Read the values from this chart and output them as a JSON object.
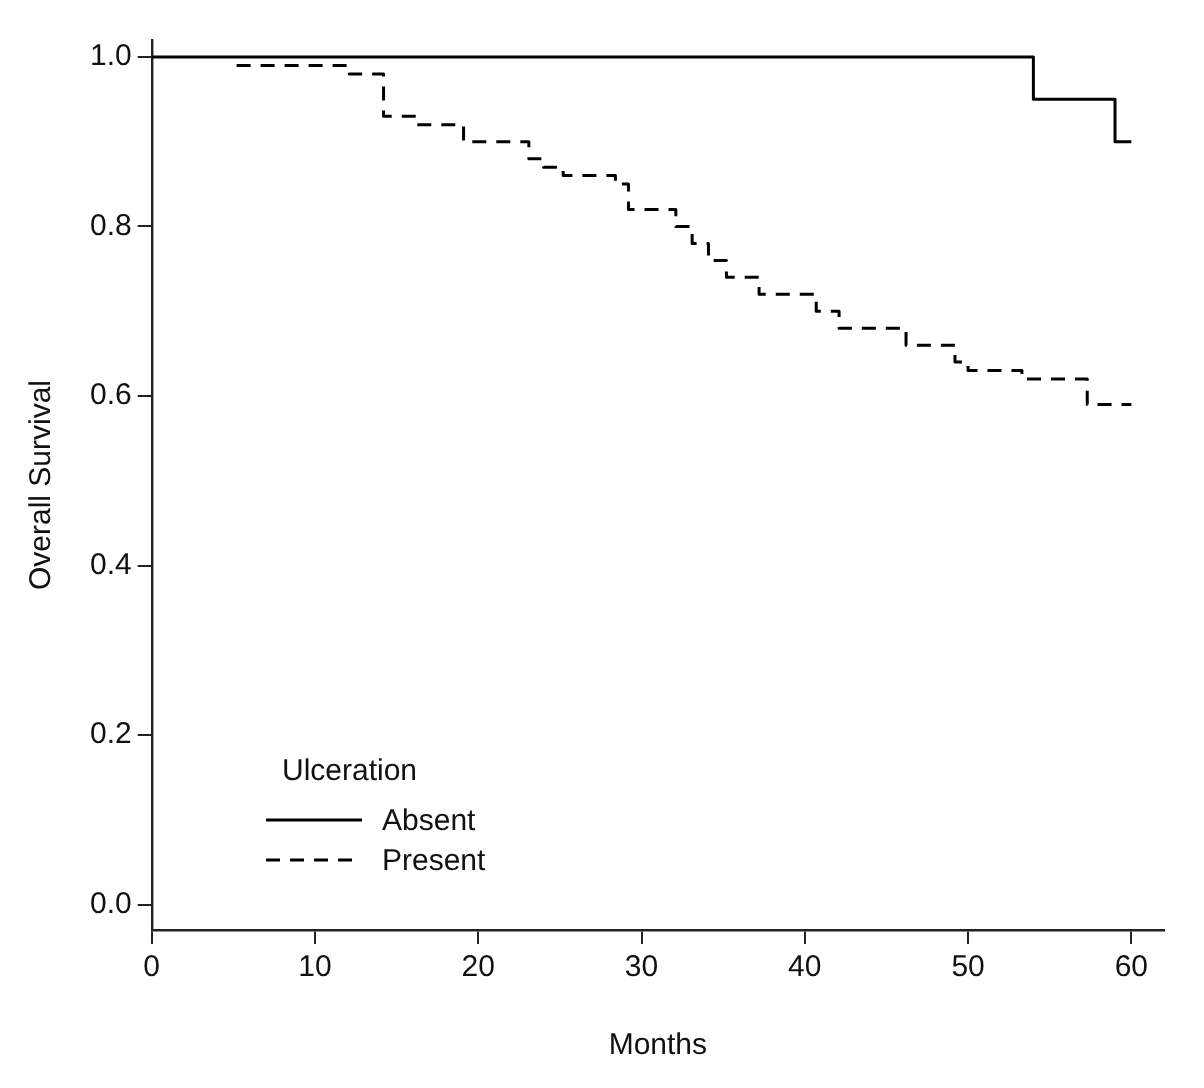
{
  "chart_data": {
    "type": "step",
    "xlabel": "Months",
    "ylabel": "Overall Survival",
    "legend_title": "Ulceration",
    "legend": "bottom left",
    "grid": false,
    "marker": "none",
    "xlim": [
      0,
      62
    ],
    "xticks": [
      0,
      10,
      20,
      30,
      40,
      50,
      60
    ],
    "ylim": [
      -0.03,
      1.02
    ],
    "yticks": [
      {
        "value": 0,
        "label": "0.0"
      },
      0.2,
      0.4,
      0.6,
      0.8,
      {
        "value": 1,
        "label": "1.0"
      }
    ],
    "series": [
      {
        "name": "Absent",
        "color": "#000000",
        "line_style": "solid",
        "x": [
          0,
          54,
          59,
          60
        ],
        "values": [
          1.0,
          0.95,
          0.9,
          0.9
        ]
      },
      {
        "name": "Present",
        "color": "#000000",
        "line_style": "dashed",
        "x": [
          5.2,
          12.1,
          14.2,
          16.2,
          19.1,
          23.1,
          24,
          25.2,
          28.4,
          29.2,
          32.1,
          33.1,
          34.1,
          35.2,
          37.2,
          39,
          40.7,
          42.1,
          46.2,
          49.2,
          50,
          53.3,
          57.3,
          60
        ],
        "values": [
          0.99,
          0.98,
          0.93,
          0.92,
          0.9,
          0.88,
          0.87,
          0.86,
          0.85,
          0.82,
          0.8,
          0.78,
          0.76,
          0.74,
          0.72,
          0.72,
          0.7,
          0.68,
          0.66,
          0.64,
          0.63,
          0.62,
          0.59,
          0.59
        ]
      }
    ]
  }
}
